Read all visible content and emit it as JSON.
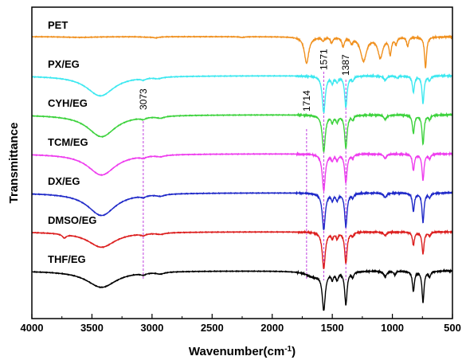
{
  "chart_data": {
    "type": "line",
    "xlabel_main": "Wavenumber(cm",
    "xlabel_sup": "-1",
    "xlabel_close": ")",
    "ylabel": "Transmittance",
    "xlim": [
      4000,
      500
    ],
    "x_reversed": true,
    "xticks": [
      4000,
      3500,
      3000,
      2500,
      2000,
      1500,
      1000,
      500
    ],
    "grid": false,
    "peak_markers": [
      {
        "label": "3073",
        "x": 3073
      },
      {
        "label": "1714",
        "x": 1714
      },
      {
        "label": "1571",
        "x": 1571
      },
      {
        "label": "1387",
        "x": 1387
      }
    ],
    "series": [
      {
        "name": "PET",
        "color": "#f0901e",
        "offset": 0,
        "bands": [
          [
            3600,
            0.02,
            150
          ],
          [
            3050,
            0.01,
            40
          ],
          [
            2970,
            0.03,
            30
          ],
          [
            2250,
            0.02,
            20
          ],
          [
            1714,
            0.72,
            22
          ],
          [
            1577,
            0.1,
            12
          ],
          [
            1505,
            0.15,
            12
          ],
          [
            1410,
            0.25,
            12
          ],
          [
            1340,
            0.15,
            12
          ],
          [
            1240,
            0.65,
            30
          ],
          [
            1100,
            0.55,
            25
          ],
          [
            1018,
            0.45,
            12
          ],
          [
            970,
            0.18,
            10
          ],
          [
            873,
            0.25,
            10
          ],
          [
            724,
            0.85,
            10
          ]
        ]
      },
      {
        "name": "PX/EG",
        "color": "#3ce8f0",
        "offset": 1,
        "bands": [
          [
            3430,
            0.55,
            140
          ],
          [
            3073,
            0.05,
            25
          ],
          [
            2950,
            0.04,
            40
          ],
          [
            1571,
            1.0,
            15
          ],
          [
            1500,
            0.18,
            10
          ],
          [
            1460,
            0.15,
            12
          ],
          [
            1387,
            0.85,
            12
          ],
          [
            1330,
            0.12,
            10
          ],
          [
            1060,
            0.12,
            15
          ],
          [
            960,
            0.06,
            10
          ],
          [
            825,
            0.45,
            10
          ],
          [
            745,
            0.75,
            10
          ],
          [
            690,
            0.12,
            10
          ]
        ]
      },
      {
        "name": "CYH/EG",
        "color": "#3cd23c",
        "offset": 2,
        "bands": [
          [
            3420,
            0.6,
            140
          ],
          [
            3073,
            0.05,
            25
          ],
          [
            2930,
            0.05,
            40
          ],
          [
            1571,
            1.0,
            15
          ],
          [
            1500,
            0.18,
            10
          ],
          [
            1460,
            0.18,
            12
          ],
          [
            1387,
            0.9,
            12
          ],
          [
            1330,
            0.12,
            10
          ],
          [
            1060,
            0.12,
            15
          ],
          [
            825,
            0.5,
            10
          ],
          [
            745,
            0.8,
            10
          ],
          [
            690,
            0.12,
            10
          ]
        ]
      },
      {
        "name": "TCM/EG",
        "color": "#ee3cee",
        "offset": 3,
        "bands": [
          [
            3420,
            0.58,
            140
          ],
          [
            3073,
            0.05,
            25
          ],
          [
            2930,
            0.04,
            40
          ],
          [
            1571,
            1.0,
            15
          ],
          [
            1500,
            0.15,
            10
          ],
          [
            1460,
            0.15,
            12
          ],
          [
            1387,
            0.78,
            12
          ],
          [
            1330,
            0.1,
            10
          ],
          [
            1060,
            0.12,
            15
          ],
          [
            825,
            0.45,
            10
          ],
          [
            745,
            0.72,
            10
          ],
          [
            690,
            0.12,
            10
          ]
        ]
      },
      {
        "name": "DX/EG",
        "color": "#1e28c8",
        "offset": 4,
        "bands": [
          [
            3420,
            0.62,
            140
          ],
          [
            3073,
            0.05,
            25
          ],
          [
            2930,
            0.05,
            40
          ],
          [
            1571,
            1.0,
            15
          ],
          [
            1500,
            0.18,
            10
          ],
          [
            1460,
            0.18,
            12
          ],
          [
            1387,
            0.92,
            12
          ],
          [
            1330,
            0.12,
            10
          ],
          [
            1060,
            0.12,
            15
          ],
          [
            825,
            0.5,
            10
          ],
          [
            745,
            0.8,
            10
          ],
          [
            690,
            0.12,
            10
          ]
        ]
      },
      {
        "name": "DMSO/EG",
        "color": "#dc1e1e",
        "offset": 5,
        "bands": [
          [
            3730,
            0.1,
            20
          ],
          [
            3420,
            0.42,
            140
          ],
          [
            3073,
            0.05,
            25
          ],
          [
            2930,
            0.04,
            40
          ],
          [
            1571,
            1.0,
            15
          ],
          [
            1500,
            0.15,
            10
          ],
          [
            1460,
            0.15,
            12
          ],
          [
            1387,
            0.85,
            12
          ],
          [
            1330,
            0.1,
            10
          ],
          [
            1060,
            0.1,
            15
          ],
          [
            825,
            0.35,
            10
          ],
          [
            745,
            0.6,
            10
          ],
          [
            690,
            0.1,
            10
          ]
        ]
      },
      {
        "name": "THF/EG",
        "color": "#000000",
        "offset": 6,
        "bands": [
          [
            3420,
            0.45,
            150
          ],
          [
            3073,
            0.05,
            25
          ],
          [
            2930,
            0.05,
            40
          ],
          [
            1650,
            0.15,
            80
          ],
          [
            1571,
            1.0,
            15
          ],
          [
            1500,
            0.18,
            10
          ],
          [
            1460,
            0.2,
            12
          ],
          [
            1387,
            0.9,
            12
          ],
          [
            1330,
            0.15,
            10
          ],
          [
            1060,
            0.15,
            15
          ],
          [
            980,
            0.1,
            10
          ],
          [
            825,
            0.55,
            10
          ],
          [
            745,
            0.85,
            10
          ],
          [
            690,
            0.15,
            10
          ]
        ]
      }
    ]
  }
}
